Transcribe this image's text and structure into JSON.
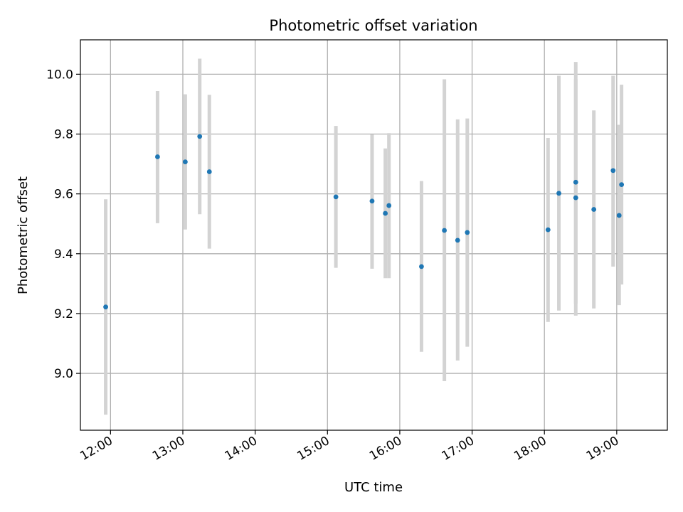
{
  "chart_data": {
    "type": "scatter",
    "title": "Photometric offset variation",
    "xlabel": "UTC time",
    "ylabel": "Photometric offset",
    "x_unit": "hours",
    "xlim": [
      "11:35",
      "19:42"
    ],
    "ylim": [
      8.81,
      10.115
    ],
    "x_ticks": [
      "12:00",
      "13:00",
      "14:00",
      "15:00",
      "16:00",
      "17:00",
      "18:00",
      "19:00"
    ],
    "y_ticks": [
      "9.0",
      "9.2",
      "9.4",
      "9.6",
      "9.8",
      "10.0"
    ],
    "grid": true,
    "legend": "none",
    "colors": {
      "points": "#1f77b4",
      "error_bars": "#d3d3d3",
      "grid": "#b0b0b0"
    },
    "series": [
      {
        "points": [
          {
            "x": "11:56",
            "y": 9.222,
            "ylo": 8.862,
            "yhi": 9.582
          },
          {
            "x": "12:39",
            "y": 9.724,
            "ylo": 9.502,
            "yhi": 9.944
          },
          {
            "x": "13:02",
            "y": 9.707,
            "ylo": 9.481,
            "yhi": 9.933
          },
          {
            "x": "13:14",
            "y": 9.792,
            "ylo": 9.532,
            "yhi": 10.052
          },
          {
            "x": "13:22",
            "y": 9.674,
            "ylo": 9.417,
            "yhi": 9.931
          },
          {
            "x": "15:07",
            "y": 9.59,
            "ylo": 9.353,
            "yhi": 9.827
          },
          {
            "x": "15:37",
            "y": 9.576,
            "ylo": 9.35,
            "yhi": 9.799
          },
          {
            "x": "15:48",
            "y": 9.535,
            "ylo": 9.318,
            "yhi": 9.752
          },
          {
            "x": "15:51",
            "y": 9.561,
            "ylo": 9.318,
            "yhi": 9.803
          },
          {
            "x": "16:18",
            "y": 9.357,
            "ylo": 9.072,
            "yhi": 9.643
          },
          {
            "x": "16:37",
            "y": 9.478,
            "ylo": 8.974,
            "yhi": 9.983
          },
          {
            "x": "16:48",
            "y": 9.445,
            "ylo": 9.043,
            "yhi": 9.849
          },
          {
            "x": "16:56",
            "y": 9.471,
            "ylo": 9.089,
            "yhi": 9.852
          },
          {
            "x": "18:03",
            "y": 9.48,
            "ylo": 9.172,
            "yhi": 9.787
          },
          {
            "x": "18:12",
            "y": 9.602,
            "ylo": 9.21,
            "yhi": 9.995
          },
          {
            "x": "18:26",
            "y": 9.639,
            "ylo": 9.233,
            "yhi": 9.984
          },
          {
            "x": "18:26",
            "y": 9.587,
            "ylo": 9.193,
            "yhi": 10.041
          },
          {
            "x": "18:41",
            "y": 9.548,
            "ylo": 9.217,
            "yhi": 9.879
          },
          {
            "x": "18:57",
            "y": 9.678,
            "ylo": 9.357,
            "yhi": 9.995
          },
          {
            "x": "19:02",
            "y": 9.528,
            "ylo": 9.228,
            "yhi": 9.831
          },
          {
            "x": "19:04",
            "y": 9.631,
            "ylo": 9.297,
            "yhi": 9.965
          }
        ]
      }
    ]
  }
}
